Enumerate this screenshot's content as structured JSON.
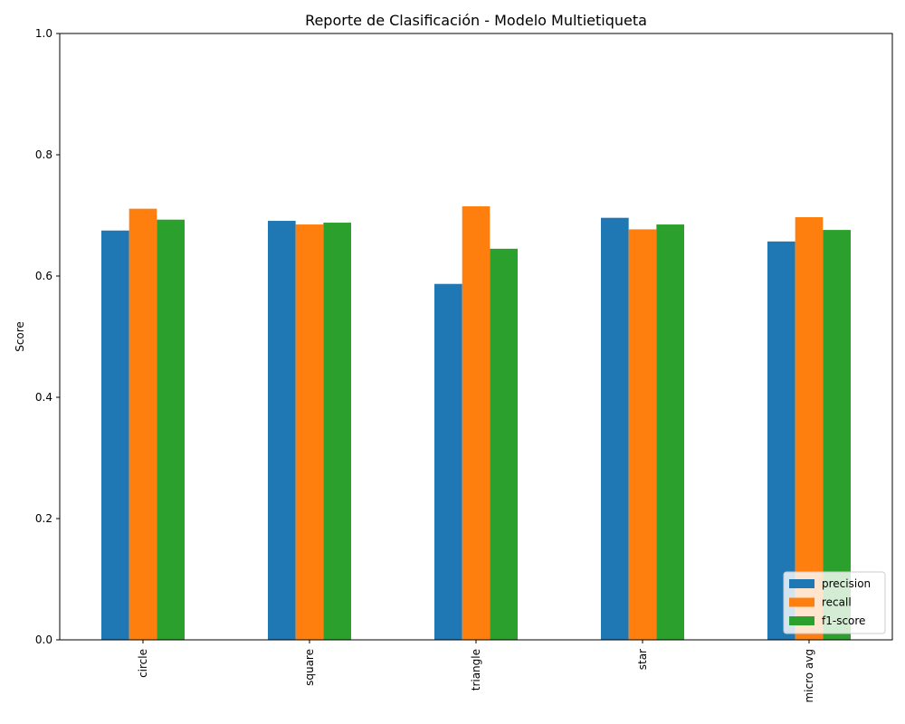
{
  "chart_data": {
    "type": "bar",
    "title": "Reporte de Clasificación - Modelo Multietiqueta",
    "xlabel": "",
    "ylabel": "Score",
    "ylim": [
      0,
      1.0
    ],
    "yticks": [
      "0.0",
      "0.2",
      "0.4",
      "0.6",
      "0.8",
      "1.0"
    ],
    "categories": [
      "circle",
      "square",
      "triangle",
      "star",
      "micro avg"
    ],
    "series": [
      {
        "name": "precision",
        "color": "#1f77b4",
        "values": [
          0.675,
          0.691,
          0.587,
          0.696,
          0.657
        ]
      },
      {
        "name": "recall",
        "color": "#ff7f0e",
        "values": [
          0.711,
          0.685,
          0.715,
          0.677,
          0.697
        ]
      },
      {
        "name": "f1-score",
        "color": "#2ca02c",
        "values": [
          0.693,
          0.688,
          0.645,
          0.685,
          0.676
        ]
      }
    ],
    "legend": "lower-right",
    "grid": false
  }
}
